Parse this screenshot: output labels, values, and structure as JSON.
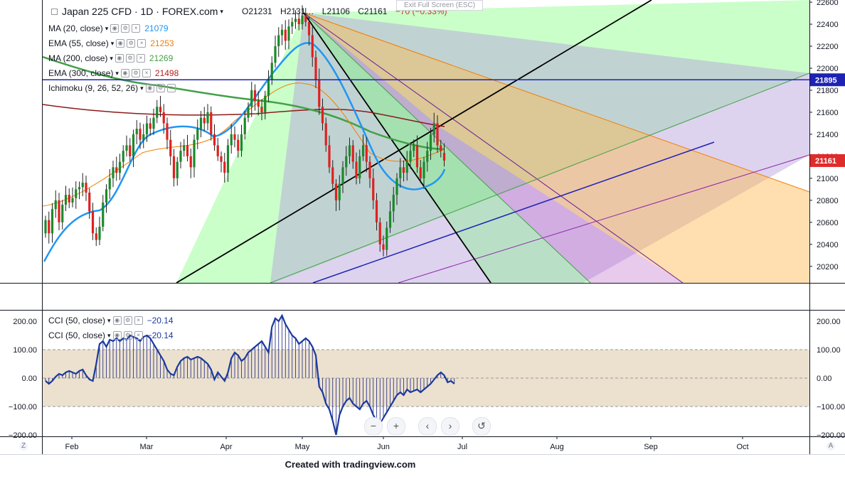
{
  "symbol": {
    "title": "Japan 225 CFD · 1D · FOREX.com",
    "ohlc": {
      "open": "O21231",
      "high": "H2131…",
      "low": "L21106",
      "close": "C21161",
      "change": "−70 (−0.33%)"
    }
  },
  "exit_fullscreen": "Exit Full Screen (ESC)",
  "legend": [
    {
      "label": "MA (20, close)",
      "value": "21079",
      "color": "#2196f3"
    },
    {
      "label": "EMA (55, close)",
      "value": "21253",
      "color": "#f57c00"
    },
    {
      "label": "MA (200, close)",
      "value": "21269",
      "color": "#43a047"
    },
    {
      "label": "EMA (300, close)",
      "value": "21498",
      "color": "#b71c1c"
    },
    {
      "label": "Ichimoku (9, 26, 52, 26)",
      "value": "",
      "color": "#9598a1"
    }
  ],
  "cci_legend": [
    {
      "label": "CCI (50, close)",
      "value": "−20.14"
    },
    {
      "label": "CCI (50, close)",
      "value": "−20.14"
    }
  ],
  "price_badges": [
    {
      "value": "21895",
      "color": "#1e22b4"
    },
    {
      "value": "21161",
      "color": "#e02b2b"
    }
  ],
  "footer": "Created with tradingview.com",
  "nav": {
    "zoom_out": "−",
    "zoom_in": "+",
    "scroll_left": "‹",
    "scroll_right": "›",
    "reset": "↺"
  },
  "corner": {
    "left": "Z",
    "right": "A"
  },
  "chart_data": [
    {
      "type": "candlestick",
      "title": "Japan 225 CFD 1D FOREX.com",
      "x_tick_labels": [
        "Feb",
        "Mar",
        "Apr",
        "May",
        "Jun",
        "Jul",
        "Aug",
        "Sep",
        "Oct"
      ],
      "y_tick_labels": [
        "20200",
        "20400",
        "20600",
        "20800",
        "21000",
        "21200",
        "21400",
        "21600",
        "21800",
        "22000",
        "22200",
        "22400",
        "22600"
      ],
      "ylim": [
        20050,
        22620
      ],
      "horizontal_line": 21895,
      "last_price": 21161,
      "series": [
        {
          "name": "MA (20, close)",
          "last": 21079,
          "color": "#2196f3"
        },
        {
          "name": "EMA (55, close)",
          "last": 21253,
          "color": "#f57c00"
        },
        {
          "name": "MA (200, close)",
          "last": 21269,
          "color": "#43a047"
        },
        {
          "name": "EMA (300, close)",
          "last": 21498,
          "color": "#b71c1c"
        }
      ],
      "candles_close": [
        20620,
        20500,
        20720,
        20800,
        20600,
        20760,
        20850,
        20780,
        20820,
        20900,
        20920,
        20960,
        20870,
        20700,
        20500,
        20440,
        20560,
        20780,
        20900,
        21000,
        21100,
        21050,
        21150,
        21250,
        21300,
        21200,
        21400,
        21450,
        21350,
        21400,
        21500,
        21450,
        21550,
        21650,
        21600,
        21500,
        21350,
        21200,
        21000,
        21150,
        21250,
        21300,
        21200,
        21100,
        21350,
        21450,
        21550,
        21500,
        21600,
        21400,
        21300,
        21200,
        21150,
        21050,
        21300,
        21400,
        21350,
        21250,
        21400,
        21550,
        21650,
        21800,
        21700,
        21650,
        21600,
        21750,
        21900,
        22050,
        22200,
        22300,
        22350,
        22250,
        22380,
        22420,
        22450,
        22400,
        22480,
        22420,
        22300,
        22100,
        21900,
        21650,
        21500,
        21300,
        21100,
        20950,
        20800,
        20950,
        21100,
        21200,
        21300,
        21150,
        21000,
        21200,
        21300,
        21150,
        21000,
        20800,
        20600,
        20400,
        20350,
        20550,
        20700,
        20850,
        21000,
        21100,
        21050,
        21150,
        21250,
        21300,
        21100,
        21000,
        21150,
        21250,
        21400,
        21500,
        21300,
        21250,
        21161
      ],
      "candles_open": [
        20500,
        20620,
        20500,
        20720,
        20800,
        20600,
        20760,
        20850,
        20780,
        20820,
        20900,
        20920,
        20960,
        20870,
        20700,
        20500,
        20440,
        20560,
        20780,
        20900,
        21000,
        21100,
        21050,
        21150,
        21250,
        21300,
        21200,
        21400,
        21450,
        21350,
        21400,
        21500,
        21450,
        21550,
        21650,
        21600,
        21500,
        21350,
        21200,
        21000,
        21150,
        21250,
        21300,
        21200,
        21100,
        21350,
        21450,
        21550,
        21500,
        21600,
        21400,
        21300,
        21200,
        21150,
        21050,
        21300,
        21400,
        21350,
        21250,
        21400,
        21550,
        21650,
        21800,
        21700,
        21650,
        21600,
        21750,
        21900,
        22050,
        22200,
        22300,
        22350,
        22250,
        22380,
        22420,
        22450,
        22400,
        22480,
        22420,
        22300,
        22100,
        21900,
        21650,
        21500,
        21300,
        21100,
        20950,
        20800,
        20950,
        21100,
        21200,
        21300,
        21150,
        21000,
        21200,
        21300,
        21150,
        21000,
        20800,
        20600,
        20400,
        20350,
        20550,
        20700,
        20850,
        21000,
        21100,
        21050,
        21150,
        21250,
        21300,
        21100,
        21000,
        21150,
        21250,
        21400,
        21500,
        21300,
        21231
      ]
    },
    {
      "type": "line",
      "title": "CCI (50, close)",
      "y_tick_labels": [
        "200.00",
        "100.00",
        "0.00",
        "−100.00",
        "−200.00"
      ],
      "ylim": [
        -205,
        235
      ],
      "band": [
        -100,
        100
      ],
      "values": [
        -10,
        -20,
        -10,
        5,
        15,
        10,
        20,
        25,
        20,
        15,
        25,
        30,
        10,
        -5,
        -10,
        50,
        120,
        130,
        110,
        135,
        130,
        140,
        130,
        140,
        135,
        150,
        145,
        140,
        130,
        145,
        150,
        140,
        120,
        100,
        80,
        60,
        30,
        15,
        10,
        40,
        60,
        70,
        75,
        65,
        70,
        75,
        70,
        60,
        50,
        30,
        -5,
        20,
        5,
        -10,
        20,
        70,
        90,
        80,
        60,
        70,
        90,
        100,
        110,
        120,
        130,
        110,
        90,
        180,
        210,
        200,
        220,
        190,
        170,
        150,
        140,
        120,
        130,
        140,
        130,
        110,
        80,
        -30,
        -50,
        -90,
        -110,
        -150,
        -200,
        -130,
        -100,
        -80,
        -70,
        -90,
        -100,
        -110,
        -90,
        -80,
        -100,
        -130,
        -150,
        -160,
        -140,
        -120,
        -100,
        -80,
        -60,
        -50,
        -60,
        -40,
        -50,
        -45,
        -40,
        -50,
        -40,
        -30,
        -20,
        -5,
        10,
        20,
        10,
        -15,
        -10,
        -20
      ]
    }
  ]
}
